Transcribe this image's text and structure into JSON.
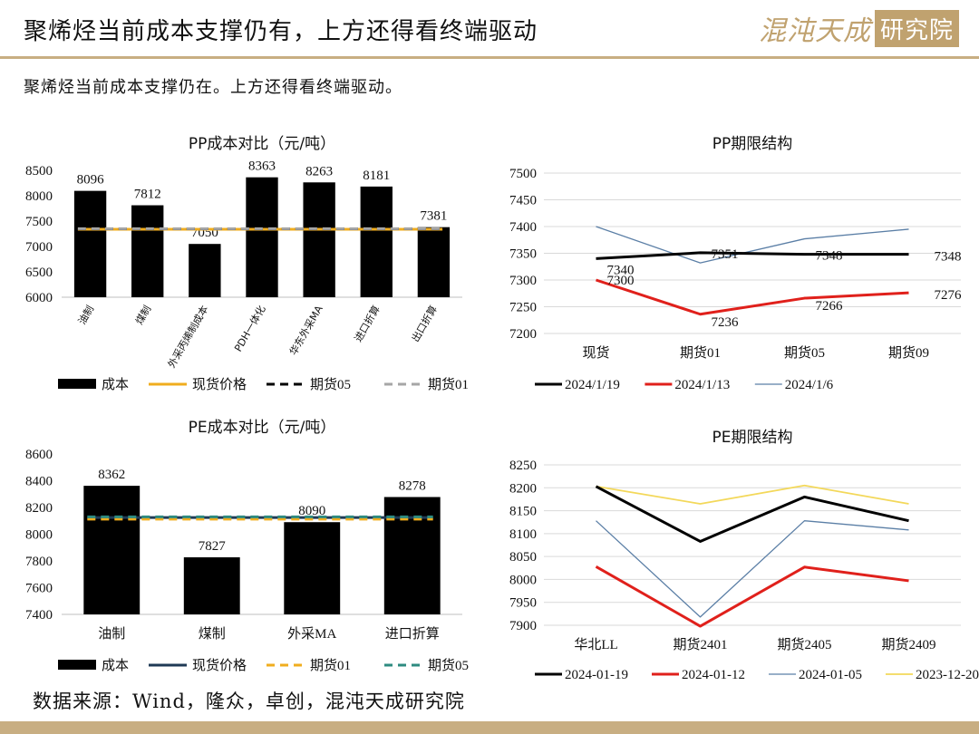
{
  "header": {
    "title": "聚烯烃当前成本支撑仍有，上方还得看终端驱动",
    "logo_main": "混沌天成",
    "logo_box": "研究院"
  },
  "subtitle": "聚烯烃当前成本支撑仍在。上方还得看终端驱动。",
  "footer": {
    "source": "数据来源：Wind，隆众，卓创，混沌天成研究院"
  },
  "colors": {
    "accent": "#c8ae82",
    "black": "#000000",
    "orange": "#f0ad1e",
    "gray": "#a6a6a6",
    "red": "#e0201b",
    "steel": "#5b7fa6",
    "yellow": "#f3d85a",
    "navy": "#1f3a55",
    "teal": "#2e8b80"
  },
  "chart_data": [
    {
      "id": "pp-cost",
      "type": "bar",
      "title": "PP成本对比（元/吨）",
      "categories": [
        "油制",
        "煤制",
        "外采丙烯制成本",
        "PDH一体化",
        "华东外采MA",
        "进口折算",
        "出口折算"
      ],
      "values": [
        8096,
        7812,
        7050,
        8363,
        8263,
        8181,
        7381
      ],
      "ylim": [
        6000,
        8500
      ],
      "yticks": [
        6000,
        6500,
        7000,
        7500,
        8000,
        8500
      ],
      "lines": [
        {
          "name": "现货价格",
          "value": 7340,
          "style": "solid",
          "color": "#f0ad1e"
        },
        {
          "name": "期货05",
          "value": 7348,
          "style": "dash",
          "color": "#000000"
        },
        {
          "name": "期货01",
          "value": 7351,
          "style": "dash",
          "color": "#a6a6a6"
        }
      ],
      "bar_legend": "成本",
      "grid": false,
      "legend": "bottom"
    },
    {
      "id": "pp-term",
      "type": "line",
      "title": "PP期限结构",
      "categories": [
        "现货",
        "期货01",
        "期货05",
        "期货09"
      ],
      "ylim": [
        7200,
        7500
      ],
      "yticks": [
        7200,
        7250,
        7300,
        7350,
        7400,
        7450,
        7500
      ],
      "series": [
        {
          "name": "2024/1/19",
          "values": [
            7340,
            7351,
            7348,
            7348
          ],
          "color": "#000000",
          "width": 3,
          "labels": true
        },
        {
          "name": "2024/1/13",
          "values": [
            7300,
            7236,
            7266,
            7276
          ],
          "color": "#e0201b",
          "width": 3,
          "labels": true
        },
        {
          "name": "2024/1/6",
          "values": [
            7400,
            7332,
            7377,
            7395
          ],
          "color": "#5b7fa6",
          "width": 1.3,
          "labels": false
        }
      ],
      "grid": true,
      "legend": "bottom"
    },
    {
      "id": "pe-cost",
      "type": "bar",
      "title": "PE成本对比（元/吨）",
      "categories": [
        "油制",
        "煤制",
        "外采MA",
        "进口折算"
      ],
      "values": [
        8362,
        7827,
        8090,
        8278
      ],
      "ylim": [
        7400,
        8600
      ],
      "yticks": [
        7400,
        7600,
        7800,
        8000,
        8200,
        8400,
        8600
      ],
      "lines": [
        {
          "name": "现货价格",
          "value": 8125,
          "style": "solid",
          "color": "#1f3a55"
        },
        {
          "name": "期货01",
          "value": 8113,
          "style": "dash",
          "color": "#f0ad1e"
        },
        {
          "name": "期货05",
          "value": 8130,
          "style": "dash",
          "color": "#2e8b80"
        }
      ],
      "bar_legend": "成本",
      "grid": false,
      "legend": "bottom"
    },
    {
      "id": "pe-term",
      "type": "line",
      "title": "PE期限结构",
      "categories": [
        "华北LL",
        "期货2401",
        "期货2405",
        "期货2409"
      ],
      "ylim": [
        7900,
        8250
      ],
      "yticks": [
        7900,
        7950,
        8000,
        8050,
        8100,
        8150,
        8200,
        8250
      ],
      "series": [
        {
          "name": "2024-01-19",
          "values": [
            8203,
            8083,
            8180,
            8128
          ],
          "color": "#000000",
          "width": 3,
          "labels": false
        },
        {
          "name": "2024-01-12",
          "values": [
            8028,
            7898,
            8027,
            7997
          ],
          "color": "#e0201b",
          "width": 3,
          "labels": false
        },
        {
          "name": "2024-01-05",
          "values": [
            8128,
            7918,
            8128,
            8108
          ],
          "color": "#5b7fa6",
          "width": 1.3,
          "labels": false
        },
        {
          "name": "2023-12-20",
          "values": [
            8203,
            8165,
            8205,
            8165
          ],
          "color": "#f3d85a",
          "width": 1.8,
          "labels": false
        }
      ],
      "grid": true,
      "legend": "bottom"
    }
  ]
}
